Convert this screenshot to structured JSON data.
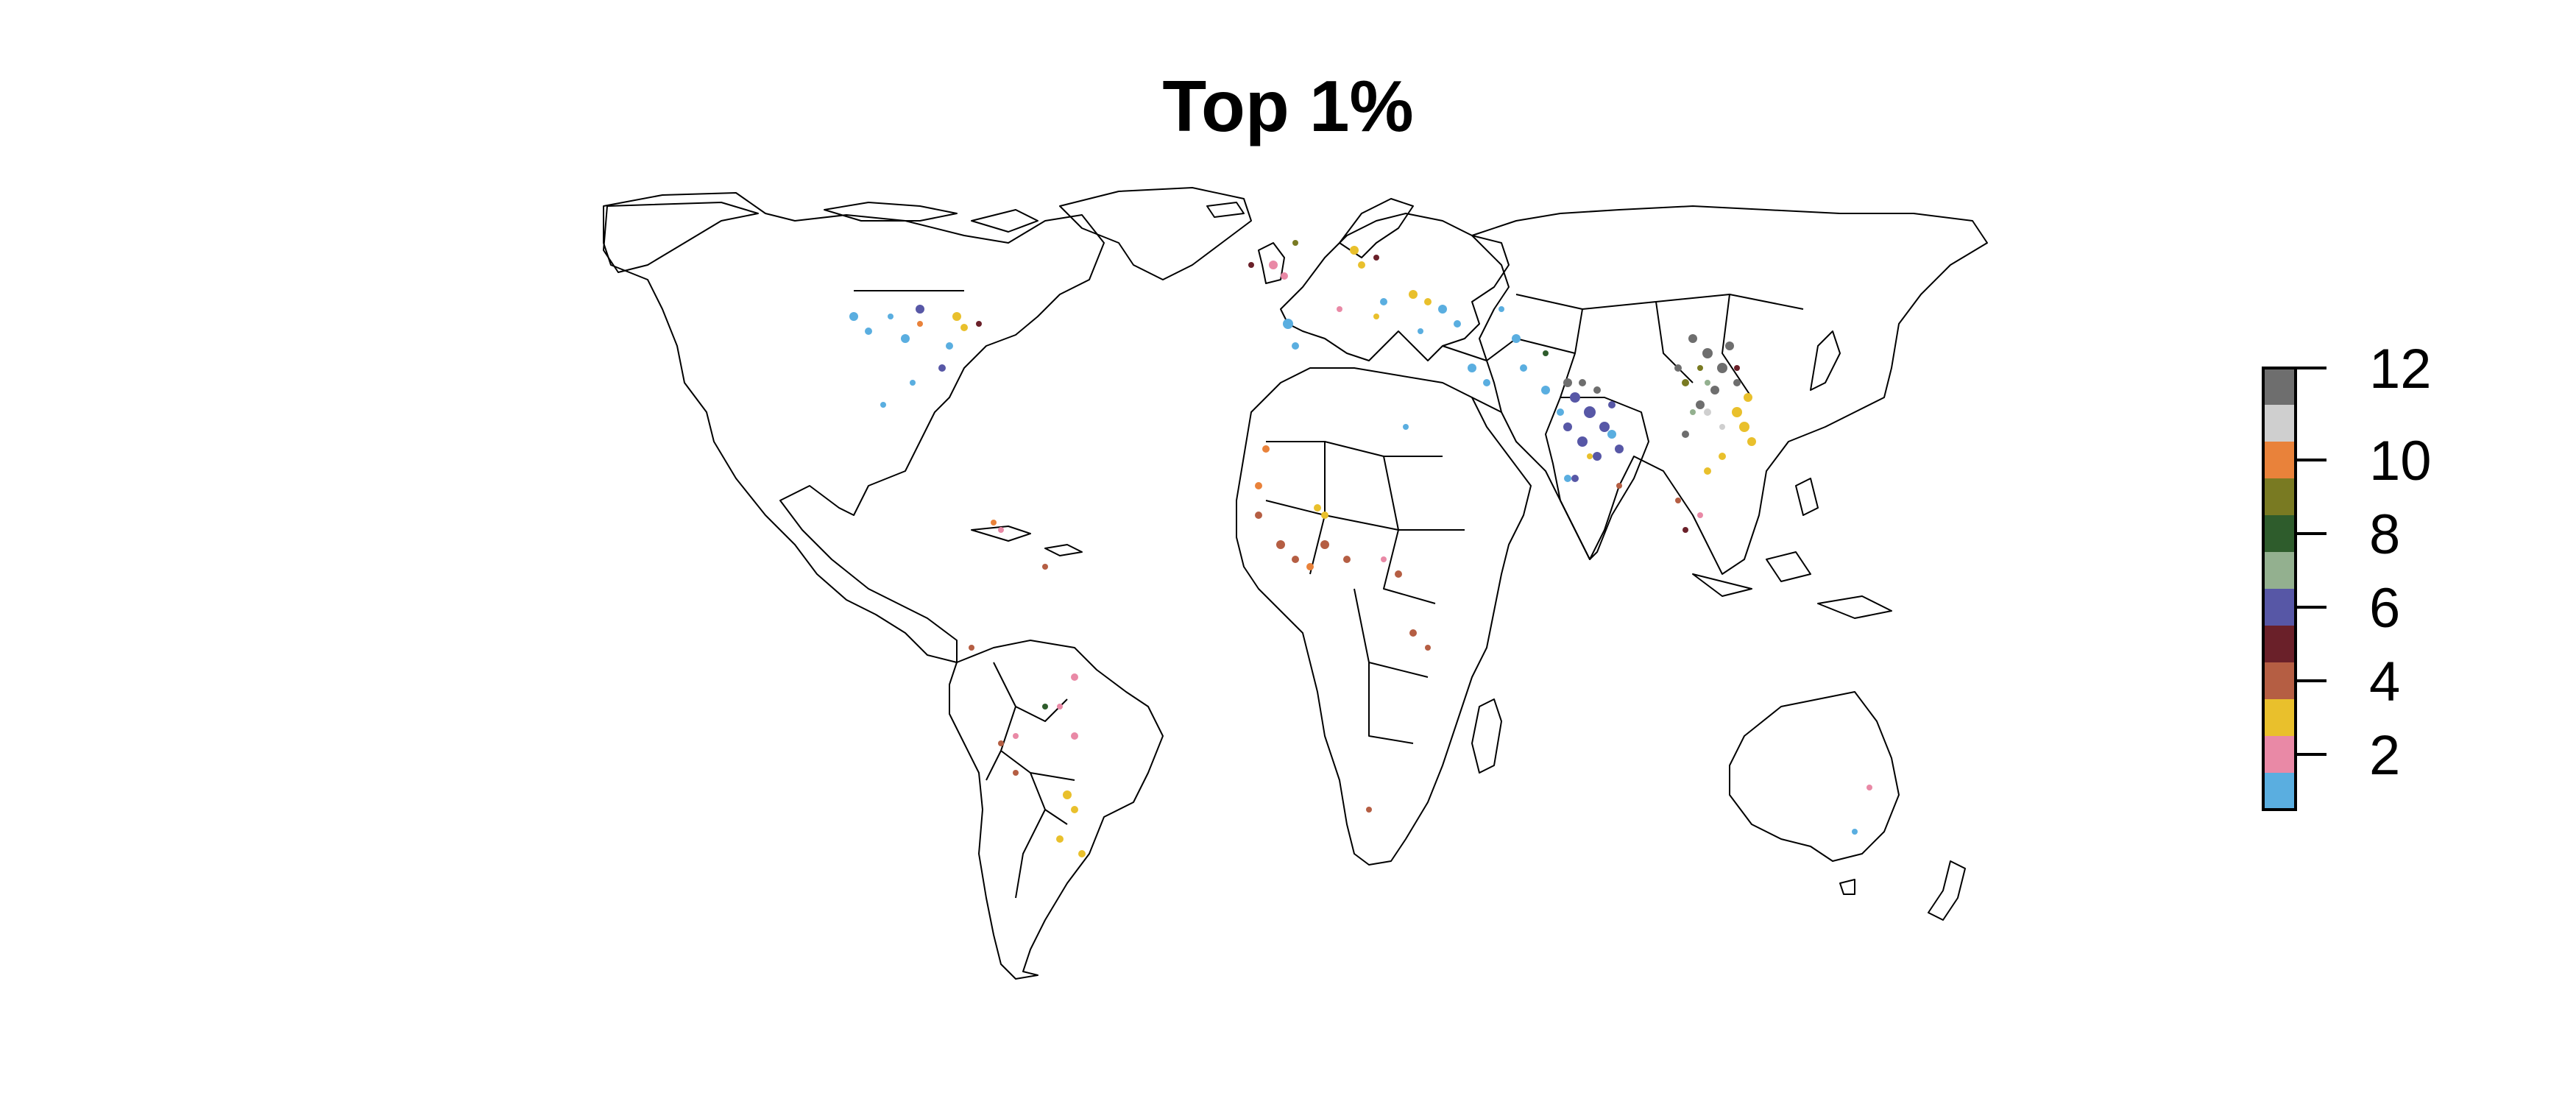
{
  "title": "Top 1%",
  "legend": {
    "tick_labels": [
      "2",
      "4",
      "6",
      "8",
      "10",
      "12"
    ],
    "tick_values": [
      2,
      4,
      6,
      8,
      10,
      12
    ],
    "range": [
      1,
      12
    ],
    "colors": [
      "#5aaee0",
      "#e989a6",
      "#e9c02c",
      "#b55e43",
      "#6a2029",
      "#5757a6",
      "#93b08f",
      "#2e5c2c",
      "#797a22",
      "#e9823a",
      "#cfcfcf",
      "#6e6e6e"
    ]
  },
  "map": {
    "projection": "world, equirectangular",
    "boundaries_color": "#000000",
    "background": "#ffffff"
  }
}
